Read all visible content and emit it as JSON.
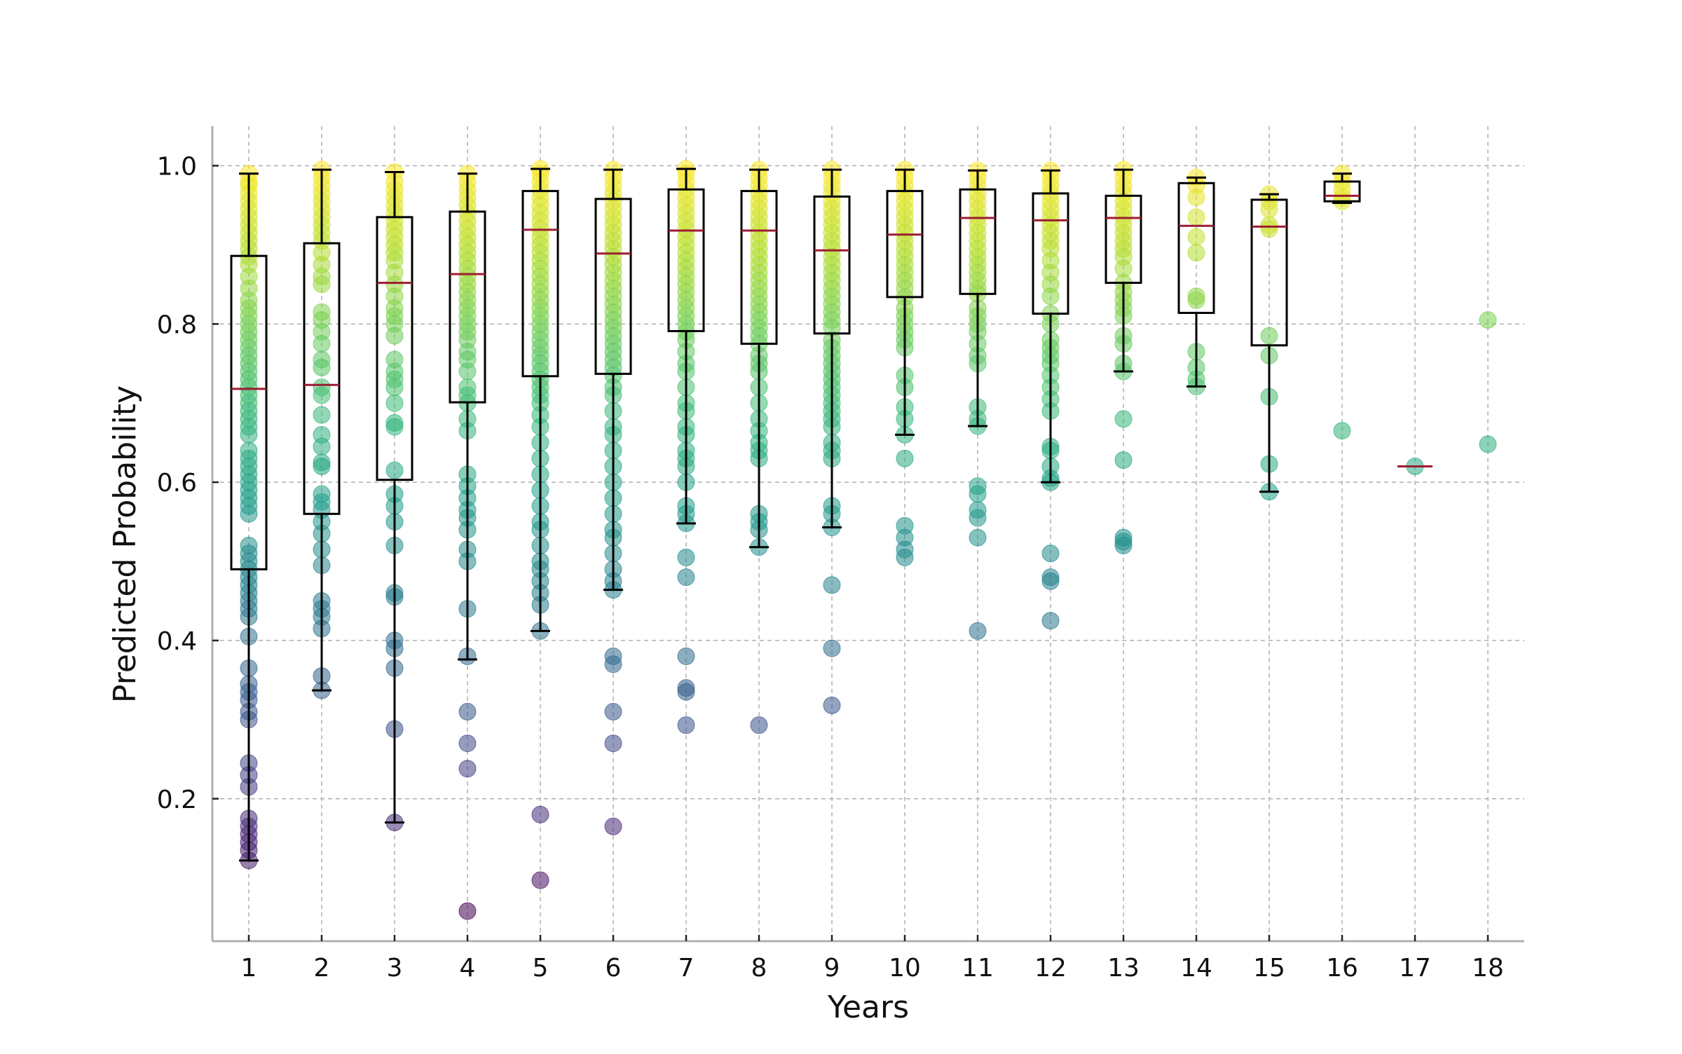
{
  "chart_data": {
    "type": "boxplot",
    "xlabel": "Years",
    "ylabel": "Predicted Probability",
    "categories": [
      "1",
      "2",
      "3",
      "4",
      "5",
      "6",
      "7",
      "8",
      "9",
      "10",
      "11",
      "12",
      "13",
      "14",
      "15",
      "16",
      "17",
      "18"
    ],
    "xlim": [
      0.5,
      18.5
    ],
    "ylim": [
      0.02,
      1.05
    ],
    "yticks": [
      0.2,
      0.4,
      0.6,
      0.8,
      1.0
    ],
    "ytick_labels": [
      "0.2",
      "0.4",
      "0.6",
      "0.8",
      "1.0"
    ],
    "grid": true,
    "legend": false,
    "colormap": "viridis",
    "colors": {
      "box": "#000000",
      "median": "#9b1c31",
      "grid": "#b0b0b0",
      "axis": "#b0b0b0"
    },
    "boxes": [
      {
        "year": "1",
        "whisker_low": 0.122,
        "q1": 0.49,
        "median": 0.718,
        "q3": 0.886,
        "whisker_high": 0.99
      },
      {
        "year": "2",
        "whisker_low": 0.337,
        "q1": 0.56,
        "median": 0.723,
        "q3": 0.902,
        "whisker_high": 0.995
      },
      {
        "year": "3",
        "whisker_low": 0.17,
        "q1": 0.603,
        "median": 0.852,
        "q3": 0.935,
        "whisker_high": 0.992
      },
      {
        "year": "4",
        "whisker_low": 0.376,
        "q1": 0.701,
        "median": 0.863,
        "q3": 0.942,
        "whisker_high": 0.99
      },
      {
        "year": "5",
        "whisker_low": 0.412,
        "q1": 0.734,
        "median": 0.919,
        "q3": 0.968,
        "whisker_high": 0.996
      },
      {
        "year": "6",
        "whisker_low": 0.464,
        "q1": 0.737,
        "median": 0.889,
        "q3": 0.958,
        "whisker_high": 0.995
      },
      {
        "year": "7",
        "whisker_low": 0.548,
        "q1": 0.791,
        "median": 0.918,
        "q3": 0.97,
        "whisker_high": 0.996
      },
      {
        "year": "8",
        "whisker_low": 0.518,
        "q1": 0.775,
        "median": 0.918,
        "q3": 0.968,
        "whisker_high": 0.995
      },
      {
        "year": "9",
        "whisker_low": 0.543,
        "q1": 0.788,
        "median": 0.893,
        "q3": 0.961,
        "whisker_high": 0.995
      },
      {
        "year": "10",
        "whisker_low": 0.66,
        "q1": 0.834,
        "median": 0.913,
        "q3": 0.968,
        "whisker_high": 0.995
      },
      {
        "year": "11",
        "whisker_low": 0.671,
        "q1": 0.838,
        "median": 0.934,
        "q3": 0.97,
        "whisker_high": 0.994
      },
      {
        "year": "12",
        "whisker_low": 0.6,
        "q1": 0.813,
        "median": 0.931,
        "q3": 0.965,
        "whisker_high": 0.994
      },
      {
        "year": "13",
        "whisker_low": 0.74,
        "q1": 0.852,
        "median": 0.934,
        "q3": 0.962,
        "whisker_high": 0.995
      },
      {
        "year": "14",
        "whisker_low": 0.721,
        "q1": 0.814,
        "median": 0.924,
        "q3": 0.978,
        "whisker_high": 0.985
      },
      {
        "year": "15",
        "whisker_low": 0.588,
        "q1": 0.773,
        "median": 0.923,
        "q3": 0.957,
        "whisker_high": 0.964
      },
      {
        "year": "16",
        "whisker_low": 0.953,
        "q1": 0.955,
        "median": 0.962,
        "q3": 0.98,
        "whisker_high": 0.99
      },
      {
        "year": "17",
        "whisker_low": 0.62,
        "q1": 0.62,
        "median": 0.62,
        "q3": 0.62,
        "whisker_high": 0.62
      },
      {
        "year": "18",
        "whisker_low": null,
        "q1": null,
        "median": null,
        "q3": null,
        "whisker_high": null
      }
    ],
    "points": {
      "1": [
        0.99,
        0.98,
        0.975,
        0.965,
        0.955,
        0.945,
        0.935,
        0.925,
        0.915,
        0.905,
        0.895,
        0.885,
        0.875,
        0.86,
        0.845,
        0.83,
        0.82,
        0.81,
        0.8,
        0.79,
        0.78,
        0.77,
        0.76,
        0.75,
        0.74,
        0.73,
        0.72,
        0.71,
        0.7,
        0.69,
        0.68,
        0.67,
        0.66,
        0.64,
        0.63,
        0.62,
        0.61,
        0.6,
        0.59,
        0.58,
        0.57,
        0.56,
        0.52,
        0.51,
        0.5,
        0.49,
        0.48,
        0.47,
        0.46,
        0.45,
        0.44,
        0.43,
        0.405,
        0.365,
        0.345,
        0.335,
        0.325,
        0.31,
        0.3,
        0.245,
        0.23,
        0.215,
        0.175,
        0.165,
        0.155,
        0.145,
        0.135,
        0.122
      ],
      "2": [
        0.995,
        0.985,
        0.975,
        0.965,
        0.955,
        0.945,
        0.935,
        0.925,
        0.915,
        0.905,
        0.89,
        0.875,
        0.86,
        0.85,
        0.815,
        0.805,
        0.79,
        0.775,
        0.755,
        0.745,
        0.72,
        0.71,
        0.685,
        0.66,
        0.645,
        0.625,
        0.62,
        0.585,
        0.575,
        0.565,
        0.55,
        0.535,
        0.515,
        0.495,
        0.45,
        0.44,
        0.43,
        0.415,
        0.355,
        0.337
      ],
      "3": [
        0.992,
        0.98,
        0.97,
        0.96,
        0.95,
        0.94,
        0.93,
        0.92,
        0.91,
        0.9,
        0.89,
        0.88,
        0.865,
        0.85,
        0.835,
        0.82,
        0.81,
        0.8,
        0.785,
        0.755,
        0.74,
        0.73,
        0.72,
        0.7,
        0.675,
        0.67,
        0.615,
        0.585,
        0.57,
        0.55,
        0.52,
        0.46,
        0.455,
        0.4,
        0.39,
        0.365,
        0.288,
        0.17
      ],
      "4": [
        0.99,
        0.98,
        0.97,
        0.96,
        0.95,
        0.94,
        0.93,
        0.92,
        0.91,
        0.9,
        0.89,
        0.88,
        0.87,
        0.86,
        0.85,
        0.84,
        0.83,
        0.82,
        0.81,
        0.8,
        0.79,
        0.78,
        0.765,
        0.755,
        0.74,
        0.72,
        0.71,
        0.7,
        0.68,
        0.665,
        0.61,
        0.595,
        0.58,
        0.565,
        0.555,
        0.54,
        0.515,
        0.5,
        0.44,
        0.38,
        0.31,
        0.27,
        0.238,
        0.058
      ],
      "5": [
        0.996,
        0.99,
        0.98,
        0.97,
        0.96,
        0.95,
        0.94,
        0.93,
        0.92,
        0.91,
        0.9,
        0.89,
        0.88,
        0.87,
        0.86,
        0.85,
        0.84,
        0.83,
        0.82,
        0.81,
        0.8,
        0.79,
        0.78,
        0.77,
        0.76,
        0.75,
        0.74,
        0.73,
        0.72,
        0.71,
        0.7,
        0.685,
        0.67,
        0.65,
        0.63,
        0.61,
        0.59,
        0.57,
        0.55,
        0.54,
        0.52,
        0.5,
        0.49,
        0.475,
        0.46,
        0.445,
        0.412,
        0.18,
        0.097
      ],
      "6": [
        0.995,
        0.985,
        0.975,
        0.965,
        0.955,
        0.945,
        0.935,
        0.925,
        0.915,
        0.905,
        0.895,
        0.885,
        0.875,
        0.865,
        0.855,
        0.845,
        0.835,
        0.825,
        0.815,
        0.805,
        0.795,
        0.785,
        0.775,
        0.765,
        0.755,
        0.745,
        0.735,
        0.72,
        0.71,
        0.69,
        0.67,
        0.66,
        0.64,
        0.62,
        0.6,
        0.58,
        0.56,
        0.54,
        0.53,
        0.51,
        0.49,
        0.475,
        0.464,
        0.38,
        0.37,
        0.31,
        0.27,
        0.165
      ],
      "7": [
        0.996,
        0.99,
        0.98,
        0.97,
        0.96,
        0.95,
        0.94,
        0.93,
        0.92,
        0.91,
        0.9,
        0.89,
        0.88,
        0.87,
        0.86,
        0.85,
        0.84,
        0.83,
        0.82,
        0.81,
        0.8,
        0.79,
        0.78,
        0.765,
        0.75,
        0.74,
        0.72,
        0.7,
        0.69,
        0.67,
        0.66,
        0.64,
        0.63,
        0.62,
        0.6,
        0.57,
        0.56,
        0.548,
        0.505,
        0.48,
        0.38,
        0.34,
        0.335,
        0.293
      ],
      "8": [
        0.995,
        0.985,
        0.975,
        0.965,
        0.955,
        0.945,
        0.935,
        0.925,
        0.915,
        0.905,
        0.895,
        0.885,
        0.875,
        0.865,
        0.855,
        0.845,
        0.835,
        0.825,
        0.815,
        0.805,
        0.795,
        0.785,
        0.775,
        0.76,
        0.75,
        0.74,
        0.72,
        0.7,
        0.68,
        0.665,
        0.65,
        0.64,
        0.63,
        0.56,
        0.55,
        0.54,
        0.518,
        0.293
      ],
      "9": [
        0.995,
        0.985,
        0.975,
        0.965,
        0.955,
        0.945,
        0.935,
        0.925,
        0.915,
        0.905,
        0.895,
        0.885,
        0.875,
        0.865,
        0.855,
        0.845,
        0.835,
        0.825,
        0.815,
        0.805,
        0.795,
        0.78,
        0.77,
        0.76,
        0.75,
        0.74,
        0.73,
        0.72,
        0.71,
        0.7,
        0.69,
        0.68,
        0.67,
        0.65,
        0.64,
        0.63,
        0.57,
        0.56,
        0.543,
        0.47,
        0.39,
        0.318
      ],
      "10": [
        0.995,
        0.985,
        0.975,
        0.965,
        0.955,
        0.945,
        0.935,
        0.925,
        0.915,
        0.905,
        0.895,
        0.885,
        0.875,
        0.865,
        0.855,
        0.845,
        0.834,
        0.82,
        0.81,
        0.8,
        0.79,
        0.78,
        0.77,
        0.735,
        0.72,
        0.695,
        0.68,
        0.66,
        0.63,
        0.545,
        0.53,
        0.515,
        0.505
      ],
      "11": [
        0.994,
        0.985,
        0.975,
        0.965,
        0.955,
        0.945,
        0.935,
        0.925,
        0.915,
        0.905,
        0.895,
        0.885,
        0.875,
        0.865,
        0.855,
        0.845,
        0.838,
        0.82,
        0.81,
        0.8,
        0.79,
        0.775,
        0.76,
        0.75,
        0.695,
        0.68,
        0.671,
        0.595,
        0.585,
        0.565,
        0.555,
        0.53,
        0.412
      ],
      "12": [
        0.994,
        0.985,
        0.975,
        0.965,
        0.955,
        0.945,
        0.935,
        0.925,
        0.915,
        0.905,
        0.895,
        0.88,
        0.865,
        0.85,
        0.835,
        0.813,
        0.8,
        0.78,
        0.77,
        0.76,
        0.75,
        0.735,
        0.72,
        0.705,
        0.69,
        0.645,
        0.64,
        0.62,
        0.605,
        0.6,
        0.51,
        0.48,
        0.475,
        0.425
      ],
      "13": [
        0.995,
        0.985,
        0.975,
        0.965,
        0.955,
        0.945,
        0.935,
        0.925,
        0.915,
        0.905,
        0.895,
        0.885,
        0.87,
        0.852,
        0.84,
        0.83,
        0.82,
        0.81,
        0.785,
        0.775,
        0.75,
        0.74,
        0.68,
        0.628,
        0.53,
        0.525,
        0.52
      ],
      "14": [
        0.985,
        0.975,
        0.96,
        0.935,
        0.91,
        0.89,
        0.835,
        0.83,
        0.765,
        0.745,
        0.73,
        0.721
      ],
      "15": [
        0.964,
        0.955,
        0.945,
        0.925,
        0.92,
        0.785,
        0.76,
        0.708,
        0.623,
        0.588
      ],
      "16": [
        0.99,
        0.98,
        0.97,
        0.96,
        0.955,
        0.665
      ],
      "17": [
        0.62
      ],
      "18": [
        0.805,
        0.648
      ]
    }
  }
}
